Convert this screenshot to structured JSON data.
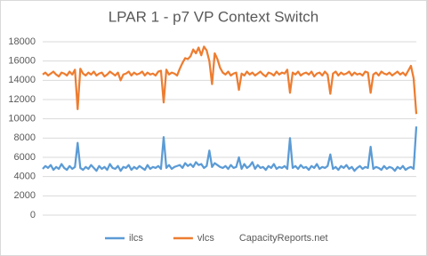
{
  "chart_data": {
    "type": "line",
    "title": "LPAR 1 - p7 VP Context Switch",
    "categories": [
      null,
      null,
      null,
      null,
      null,
      null,
      null,
      null,
      null,
      null,
      null,
      null,
      null,
      null,
      null,
      null,
      null,
      null,
      null,
      null,
      null,
      null,
      null,
      null,
      null,
      null,
      null,
      null,
      null,
      null,
      null,
      null,
      null,
      null,
      null,
      null,
      null,
      null,
      null,
      null,
      null,
      null,
      null,
      null,
      null,
      null,
      null,
      null,
      null,
      null,
      null,
      null,
      null,
      null,
      null,
      null,
      null,
      null,
      null,
      null,
      null,
      null,
      null,
      null,
      null,
      null,
      null,
      null,
      null,
      null,
      null,
      null,
      null,
      null,
      null,
      null,
      null,
      null,
      null,
      null,
      null,
      null,
      null,
      null,
      null,
      null,
      null,
      null,
      null,
      null,
      null,
      null,
      null,
      null,
      null,
      null,
      null,
      null,
      null,
      null,
      null,
      null,
      null,
      null,
      null,
      null,
      null,
      null,
      null,
      null,
      null,
      null,
      null,
      null,
      null,
      null,
      null,
      null,
      null,
      null,
      null,
      null,
      null,
      null,
      null,
      null,
      null,
      null,
      null,
      null,
      null,
      null,
      null,
      null,
      null,
      null,
      null,
      null,
      null,
      null
    ],
    "series": [
      {
        "name": "ilcs",
        "color": "#5b9bd5",
        "values": [
          4800,
          5100,
          4900,
          5200,
          4700,
          5000,
          4800,
          5300,
          4900,
          4700,
          5100,
          4800,
          5000,
          7500,
          4900,
          4700,
          5000,
          4800,
          5200,
          4900,
          4600,
          5100,
          4800,
          5000,
          4700,
          5300,
          4900,
          4800,
          5100,
          4600,
          5000,
          4900,
          5200,
          4700,
          5000,
          4800,
          5100,
          4900,
          4700,
          5200,
          4800,
          5000,
          4900,
          5100,
          4800,
          8100,
          4900,
          5200,
          4800,
          5000,
          5100,
          5200,
          4900,
          5400,
          5100,
          5300,
          5000,
          5500,
          5200,
          5300,
          4900,
          5100,
          6700,
          5000,
          5400,
          5200,
          5000,
          4900,
          5100,
          4800,
          5200,
          4900,
          5000,
          6000,
          4800,
          5300,
          4900,
          5100,
          5500,
          4800,
          5200,
          4900,
          5000,
          4700,
          5100,
          4900,
          5300,
          4800,
          5000,
          4900,
          5100,
          4800,
          8000,
          4900,
          5100,
          4800,
          5200,
          4900,
          5000,
          4700,
          5100,
          4900,
          5300,
          4800,
          5000,
          4900,
          5100,
          6300,
          4800,
          5000,
          4700,
          5100,
          4900,
          5200,
          4800,
          5000,
          4600,
          4900,
          5100,
          4800,
          5000,
          4900,
          7100,
          4800,
          5000,
          4900,
          4700,
          5100,
          4800,
          5000,
          4900,
          4600,
          5000,
          4800,
          5100,
          4700,
          4900,
          5000,
          4800,
          9200
        ]
      },
      {
        "name": "vlcs",
        "color": "#ed7d31",
        "values": [
          14600,
          14800,
          14500,
          14700,
          14900,
          14600,
          14400,
          14800,
          14700,
          14500,
          14900,
          14600,
          15100,
          11000,
          15200,
          14700,
          14500,
          14800,
          14600,
          14900,
          14500,
          14700,
          14800,
          14400,
          14600,
          14900,
          14700,
          14500,
          14800,
          14000,
          14600,
          14700,
          14900,
          14500,
          14800,
          14600,
          14700,
          14900,
          14500,
          14800,
          14600,
          14700,
          14500,
          14900,
          15000,
          11700,
          15100,
          14600,
          14800,
          14700,
          14500,
          15200,
          15800,
          16300,
          16200,
          16500,
          17200,
          16800,
          17400,
          16600,
          17500,
          17100,
          16000,
          13600,
          16800,
          16200,
          15300,
          14800,
          14600,
          14900,
          14500,
          14700,
          14800,
          13000,
          14700,
          14500,
          14900,
          14600,
          14800,
          14500,
          14700,
          14900,
          14600,
          14400,
          14800,
          14700,
          14500,
          14900,
          14600,
          14800,
          14700,
          15100,
          12700,
          14800,
          14600,
          14900,
          14500,
          14700,
          14800,
          14600,
          14900,
          14400,
          14700,
          14800,
          14500,
          14900,
          14600,
          12600,
          14700,
          14900,
          14500,
          14800,
          14600,
          14700,
          14900,
          14500,
          14800,
          14600,
          14700,
          14500,
          14900,
          14800,
          12700,
          14600,
          14800,
          14500,
          14900,
          14700,
          14600,
          14800,
          14500,
          14700,
          14900,
          14600,
          14800,
          14500,
          15000,
          15500,
          14200,
          10500
        ]
      }
    ],
    "ylim": [
      0,
      18000
    ],
    "yticks": [
      0,
      2000,
      4000,
      6000,
      8000,
      10000,
      12000,
      14000,
      16000,
      18000
    ],
    "grid": true,
    "legend": "bottom",
    "annotation": "CapacityReports.net"
  }
}
